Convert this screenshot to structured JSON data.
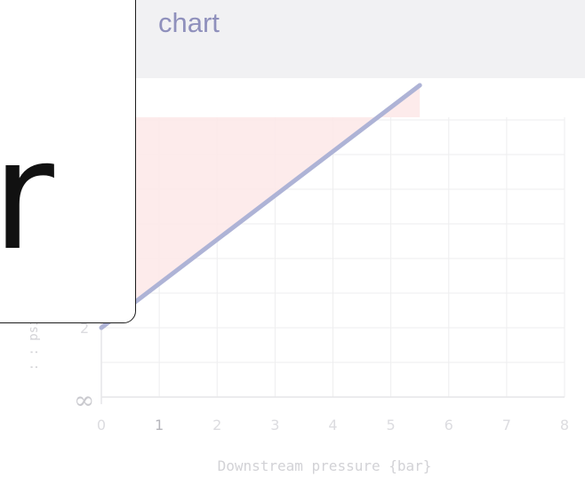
{
  "header": {
    "title": "chart"
  },
  "overlay": {
    "glyph": "r"
  },
  "chart_data": {
    "type": "line",
    "xlabel": "Downstream pressure {bar}",
    "ylabel": ": : psi",
    "x_ticks": [
      "0",
      "1",
      "2",
      "3",
      "4",
      "5",
      "6",
      "7",
      "8"
    ],
    "y_ticks_visible": [
      "2"
    ],
    "zero_marker": "∞",
    "xlim": [
      0,
      8
    ],
    "grid": true,
    "series": [
      {
        "x": [
          0,
          5.5
        ],
        "y": [
          2,
          9
        ],
        "color": "#aeb3d6"
      }
    ],
    "shaded_region": {
      "color": "#fde8e8"
    }
  },
  "colors": {
    "line": "#aeb3d6",
    "shade": "#fde8e8",
    "grid": "#eeeeef",
    "header_bg": "#f1f1f3"
  }
}
